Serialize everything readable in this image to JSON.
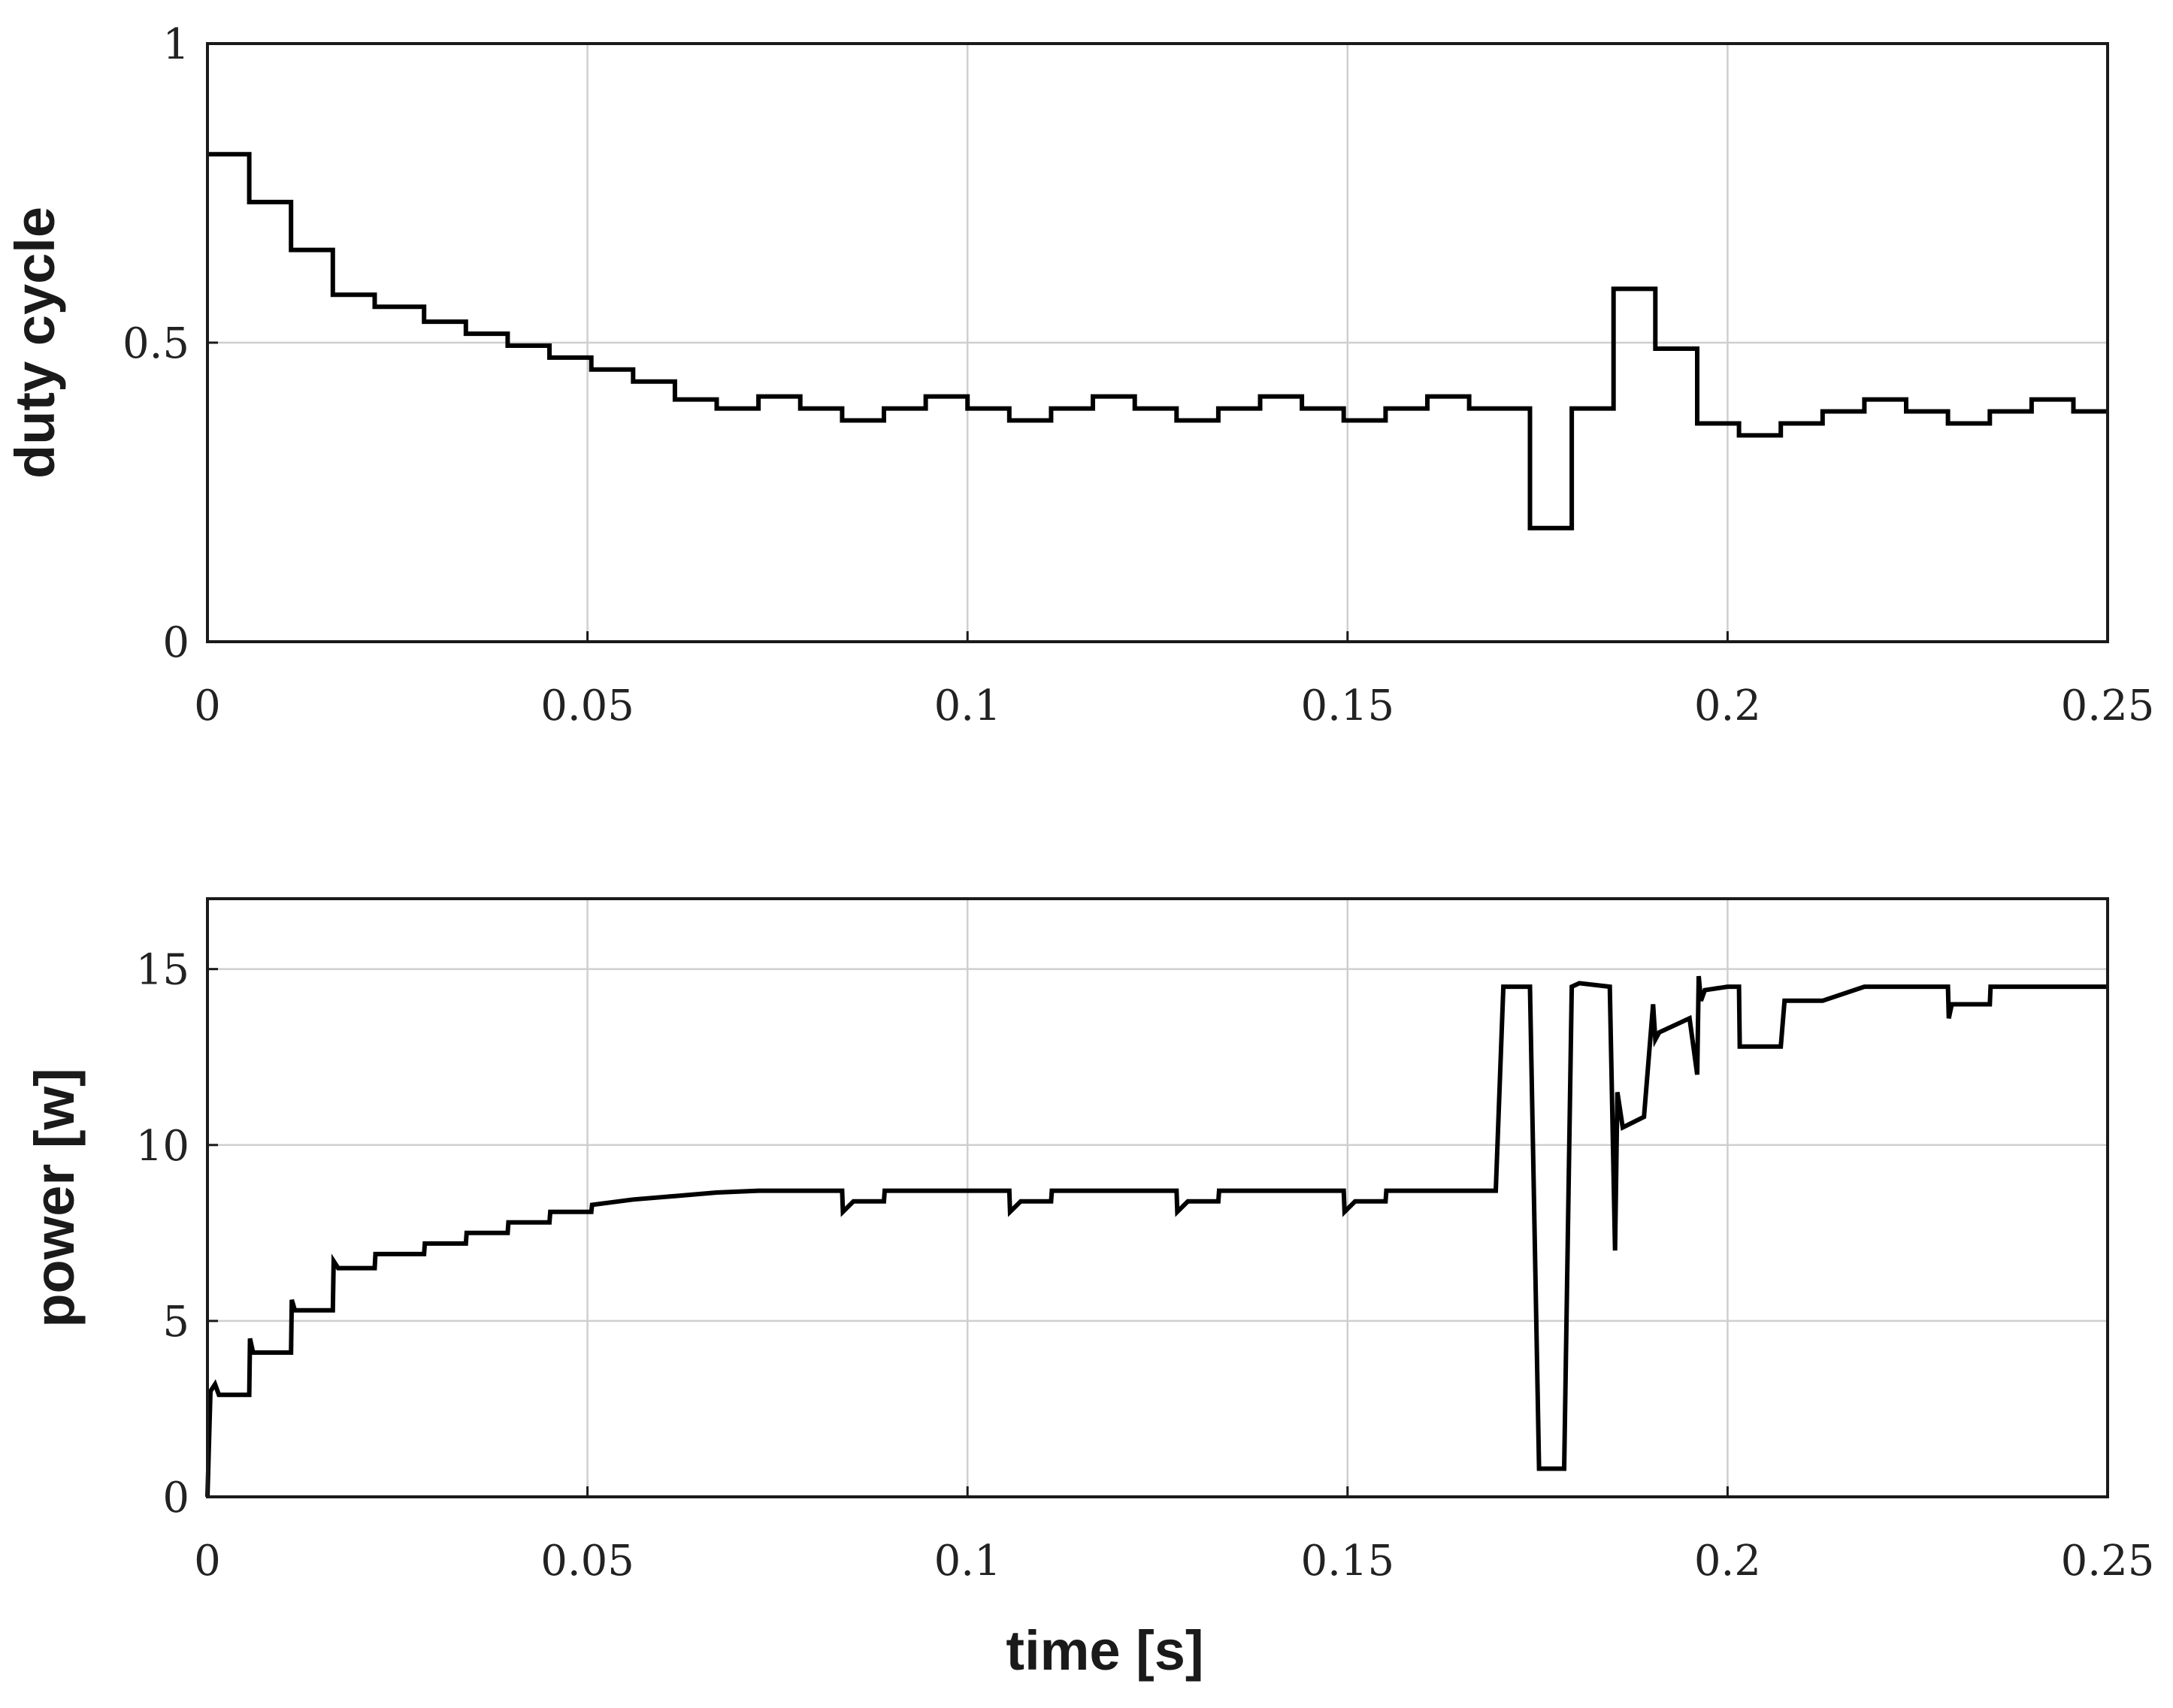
{
  "chart_data": [
    {
      "type": "line",
      "ylabel": "duty cycle",
      "xlabel": "",
      "xlim": [
        0,
        0.25
      ],
      "ylim": [
        0,
        1
      ],
      "grid": true,
      "x_ticks": [
        "0",
        "0.05",
        "0.1",
        "0.15",
        "0.2",
        "0.25"
      ],
      "y_ticks": [
        "0",
        "0.5",
        "1"
      ],
      "x_tick_values": [
        0,
        0.05,
        0.1,
        0.15,
        0.2,
        0.25
      ],
      "y_tick_values": [
        0,
        0.5,
        1
      ],
      "series": [
        {
          "step": true,
          "x": [
            0,
            0.0055,
            0.011,
            0.0165,
            0.022,
            0.0285,
            0.034,
            0.0395,
            0.045,
            0.0505,
            0.056,
            0.0615,
            0.067,
            0.0725,
            0.078,
            0.0835,
            0.089,
            0.0945,
            0.1,
            0.1055,
            0.111,
            0.1165,
            0.122,
            0.1275,
            0.133,
            0.1385,
            0.144,
            0.1495,
            0.155,
            0.1605,
            0.166,
            0.1715,
            0.174,
            0.1795,
            0.185,
            0.1905,
            0.196,
            0.2015,
            0.207,
            0.2125,
            0.218,
            0.2235,
            0.229,
            0.2345,
            0.24,
            0.2455
          ],
          "y": [
            0.815,
            0.735,
            0.655,
            0.58,
            0.56,
            0.535,
            0.515,
            0.495,
            0.475,
            0.455,
            0.435,
            0.405,
            0.39,
            0.41,
            0.39,
            0.37,
            0.39,
            0.41,
            0.39,
            0.37,
            0.39,
            0.41,
            0.39,
            0.37,
            0.39,
            0.41,
            0.39,
            0.37,
            0.39,
            0.41,
            0.39,
            0.39,
            0.19,
            0.39,
            0.59,
            0.49,
            0.365,
            0.345,
            0.365,
            0.385,
            0.405,
            0.385,
            0.365,
            0.385,
            0.405,
            0.385
          ]
        }
      ]
    },
    {
      "type": "line",
      "ylabel": "power [w]",
      "xlabel": "time [s]",
      "xlim": [
        0,
        0.25
      ],
      "ylim": [
        0,
        17
      ],
      "grid": true,
      "x_ticks": [
        "0",
        "0.05",
        "0.1",
        "0.15",
        "0.2",
        "0.25"
      ],
      "y_ticks": [
        "0",
        "5",
        "10",
        "15"
      ],
      "x_tick_values": [
        0,
        0.05,
        0.1,
        0.15,
        0.2,
        0.25
      ],
      "y_tick_values": [
        0,
        5,
        10,
        15
      ],
      "series": [
        {
          "x": [
            0,
            0.0004,
            0.001,
            0.0015,
            0.0055,
            0.0056,
            0.006,
            0.011,
            0.0111,
            0.0115,
            0.0165,
            0.0166,
            0.0172,
            0.022,
            0.0221,
            0.0285,
            0.0286,
            0.034,
            0.0341,
            0.0395,
            0.0396,
            0.045,
            0.0451,
            0.0505,
            0.0506,
            0.056,
            0.0615,
            0.067,
            0.0725,
            0.078,
            0.0835,
            0.0836,
            0.085,
            0.089,
            0.0891,
            0.1,
            0.1055,
            0.1056,
            0.107,
            0.111,
            0.1111,
            0.122,
            0.1275,
            0.1276,
            0.129,
            0.133,
            0.1331,
            0.144,
            0.1495,
            0.1496,
            0.151,
            0.155,
            0.1551,
            0.1695,
            0.1705,
            0.174,
            0.1752,
            0.1758,
            0.1785,
            0.1795,
            0.1805,
            0.1845,
            0.1852,
            0.1855,
            0.1862,
            0.189,
            0.1902,
            0.1905,
            0.191,
            0.195,
            0.196,
            0.1962,
            0.1965,
            0.197,
            0.2,
            0.2015,
            0.2016,
            0.207,
            0.2075,
            0.2125,
            0.218,
            0.2235,
            0.229,
            0.2291,
            0.2295,
            0.2345,
            0.2346,
            0.24,
            0.2455,
            0.25
          ],
          "y": [
            0,
            3.0,
            3.2,
            2.9,
            2.9,
            4.5,
            4.1,
            4.1,
            5.6,
            5.3,
            5.3,
            6.7,
            6.5,
            6.5,
            6.9,
            6.9,
            7.2,
            7.2,
            7.5,
            7.5,
            7.8,
            7.8,
            8.1,
            8.1,
            8.3,
            8.45,
            8.55,
            8.65,
            8.7,
            8.7,
            8.7,
            8.1,
            8.4,
            8.4,
            8.7,
            8.7,
            8.7,
            8.1,
            8.4,
            8.4,
            8.7,
            8.7,
            8.7,
            8.1,
            8.4,
            8.4,
            8.7,
            8.7,
            8.7,
            8.1,
            8.4,
            8.4,
            8.7,
            8.7,
            14.5,
            14.5,
            0.8,
            0.8,
            0.8,
            14.5,
            14.6,
            14.5,
            7.0,
            11.5,
            10.5,
            10.8,
            14.0,
            13.0,
            13.2,
            13.6,
            12.0,
            14.8,
            14.1,
            14.4,
            14.5,
            14.5,
            12.8,
            12.8,
            14.1,
            14.1,
            14.5,
            14.5,
            14.5,
            13.6,
            14.0,
            14.0,
            14.5,
            14.5,
            14.5,
            14.5
          ]
        }
      ]
    }
  ]
}
